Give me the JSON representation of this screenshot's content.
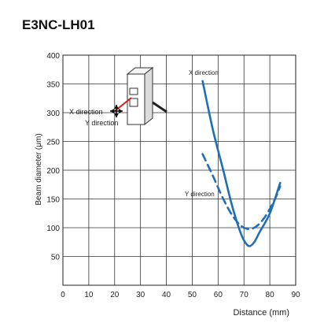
{
  "title": "E3NC-LH01",
  "chart_data": {
    "type": "line",
    "xlabel": "Distance (mm)",
    "ylabel": "Beam diameter (μm)",
    "xlim": [
      0,
      90
    ],
    "ylim": [
      0,
      400
    ],
    "xticks": [
      0,
      10,
      20,
      30,
      40,
      50,
      60,
      70,
      80,
      90
    ],
    "yticks": [
      50,
      100,
      150,
      200,
      250,
      300,
      350,
      400
    ],
    "grid": true,
    "series": [
      {
        "name": "X direction",
        "style": "solid",
        "color": "#1f6fb8",
        "points": [
          [
            54,
            355
          ],
          [
            58,
            270
          ],
          [
            62,
            200
          ],
          [
            65,
            145
          ],
          [
            68,
            100
          ],
          [
            70,
            78
          ],
          [
            72,
            68
          ],
          [
            74,
            75
          ],
          [
            76,
            92
          ],
          [
            80,
            125
          ],
          [
            84,
            178
          ]
        ]
      },
      {
        "name": "Y direction",
        "style": "dashed",
        "color": "#1f6fb8",
        "points": [
          [
            54,
            228
          ],
          [
            58,
            190
          ],
          [
            62,
            150
          ],
          [
            66,
            118
          ],
          [
            70,
            100
          ],
          [
            74,
            100
          ],
          [
            78,
            118
          ],
          [
            82,
            150
          ],
          [
            84,
            172
          ]
        ]
      }
    ],
    "annotations": {
      "x_direction_top": "X direction",
      "y_direction_mid": "Y direction",
      "inset_x_label": "X direction",
      "inset_y_label": "Y direction"
    }
  }
}
